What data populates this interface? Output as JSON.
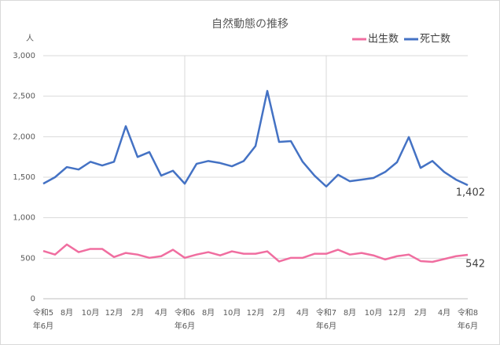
{
  "chart_data": {
    "type": "line",
    "title": "自然動態の推移",
    "y_unit": "人",
    "categories": [
      "令和5\n年6月",
      null,
      "8月",
      null,
      "10月",
      null,
      "12月",
      null,
      "2月",
      null,
      "4月",
      null,
      "令和6\n年6月",
      null,
      "8月",
      null,
      "10月",
      null,
      "12月",
      null,
      "2月",
      null,
      "4月",
      null,
      "令和7\n年6月",
      null,
      "8月",
      null,
      "10月",
      null,
      "12月",
      null,
      "2月",
      null,
      "4月",
      null,
      "令和8\n年6月"
    ],
    "series": [
      {
        "name": "出生数",
        "color": "#f06ea0",
        "values": [
          590,
          545,
          670,
          575,
          615,
          615,
          515,
          565,
          545,
          505,
          525,
          605,
          505,
          545,
          575,
          535,
          585,
          555,
          555,
          585,
          460,
          505,
          505,
          555,
          555,
          605,
          545,
          565,
          535,
          485,
          525,
          545,
          465,
          455,
          490,
          525,
          542
        ]
      },
      {
        "name": "死亡数",
        "color": "#4472c4",
        "values": [
          1420,
          1500,
          1625,
          1595,
          1690,
          1645,
          1690,
          2130,
          1750,
          1810,
          1520,
          1580,
          1420,
          1665,
          1700,
          1675,
          1635,
          1700,
          1885,
          2565,
          1935,
          1945,
          1690,
          1520,
          1385,
          1530,
          1450,
          1470,
          1490,
          1565,
          1685,
          1995,
          1615,
          1700,
          1565,
          1470,
          1402
        ],
        "value_labels": [
          null,
          null,
          null,
          null,
          null,
          null,
          null,
          null,
          null,
          null,
          null,
          null,
          null,
          null,
          null,
          null,
          null,
          null,
          null,
          null,
          null,
          null,
          null,
          null,
          null,
          null,
          null,
          null,
          null,
          null,
          null,
          null,
          null,
          null,
          null,
          null,
          "1,402"
        ]
      }
    ],
    "ylim": [
      0,
      3000
    ],
    "yticks": [
      0,
      500,
      {
        "value": 1000,
        "label": "1,000"
      },
      {
        "value": 1500,
        "label": "1,500"
      },
      {
        "value": 2000,
        "label": "2,000"
      },
      {
        "value": 2500,
        "label": "2,500"
      },
      {
        "value": 3000,
        "label": "3,000"
      }
    ],
    "grid": true,
    "legend": "top-right"
  }
}
